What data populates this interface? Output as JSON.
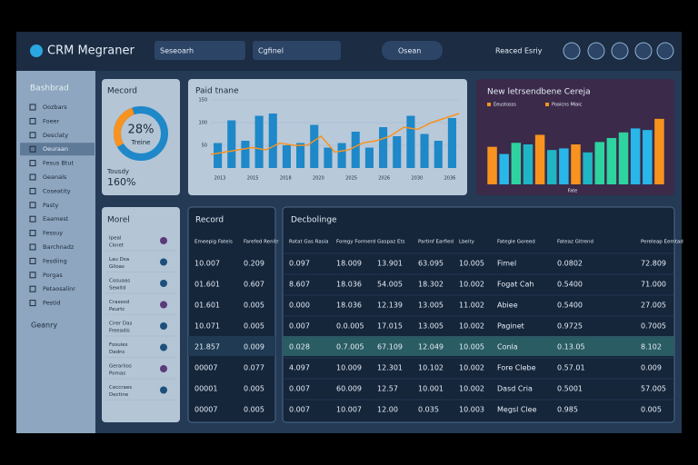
{
  "header": {
    "logo": "CRM Megraner",
    "search": "Seseoarh",
    "filter": "Cgfinel",
    "dropdown": "Osean",
    "link": "Reaced Esriy"
  },
  "sidebar": {
    "title": "Bashbrad",
    "items": [
      "Oozbars",
      "Foeer",
      "Desclaty",
      "Oeuraan",
      "Fesus Btut",
      "Geanals",
      "Coseatity",
      "Pasty",
      "Eaamest",
      "Fessuy",
      "Barchnadz",
      "Fesdiing",
      "Porgas",
      "Petaosalinr",
      "Pestid"
    ],
    "footer": "Geanry"
  },
  "donut_card": {
    "title": "Mecord",
    "value": 28,
    "value_label": "28%",
    "caption": "Treine",
    "footer_label": "Tousdy",
    "footer_value": "160%"
  },
  "trend_card": {
    "title": "Paid tnane",
    "ylim": [
      0,
      150
    ],
    "yticks": [
      50,
      100,
      150
    ],
    "bars": [
      55,
      105,
      60,
      115,
      120,
      50,
      55,
      95,
      45,
      55,
      80,
      45,
      90,
      70,
      115,
      75,
      60,
      110
    ],
    "line": [
      30,
      35,
      40,
      45,
      40,
      55,
      50,
      50,
      70,
      35,
      40,
      55,
      60,
      70,
      90,
      85,
      100,
      110,
      120
    ],
    "x_labels": [
      "2013",
      "2015",
      "2018",
      "2020",
      "2025",
      "2026",
      "2030",
      "2036"
    ]
  },
  "mix_card": {
    "title": "New letrsendbene Cereja",
    "ylim": [
      0,
      100
    ],
    "legend": [
      {
        "name": "Eeustosss",
        "color": "#f7931e"
      },
      {
        "name": "Poaicns Mlaic",
        "color": "#f7931e"
      }
    ],
    "values": [
      47,
      38,
      52,
      50,
      62,
      43,
      45,
      50,
      40,
      53,
      58,
      65,
      70,
      68,
      82
    ],
    "colors": [
      "#f7931e",
      "#29b6e8",
      "#2ed3a0",
      "#1fb5c4",
      "#f7931e",
      "#1fb5c4",
      "#29b6e8",
      "#f7931e",
      "#1fb5c4",
      "#2ed3a0",
      "#2ed3a0",
      "#2ed3a0",
      "#29b6e8",
      "#29b6e8",
      "#f7931e"
    ],
    "x_label": "Fate"
  },
  "list_card": {
    "title": "Morel",
    "items": [
      [
        "Ipeal",
        "Cknet"
      ],
      [
        "Lau Dsa",
        "Giloas"
      ],
      [
        "Cosuaas",
        "Sewitd"
      ],
      [
        "Crasesd",
        "Peurtc"
      ],
      [
        "Cirer Das",
        "Freeadis"
      ],
      [
        "Fosuies",
        "Dadnc"
      ],
      [
        "Gerariios",
        "Pomas"
      ],
      [
        "Ceccraes",
        "Dectine"
      ]
    ]
  },
  "record_table": {
    "title": "Record",
    "headers": [
      "Emeepig Fateis",
      "Farefed Renitr"
    ],
    "rows": [
      [
        "10.007",
        "0.209"
      ],
      [
        "01.601",
        "0.607"
      ],
      [
        "01.601",
        "0.005"
      ],
      [
        "10.071",
        "0.005"
      ],
      [
        "21.857",
        "0.009"
      ],
      [
        "00007",
        "0.077"
      ],
      [
        "00001",
        "0.005"
      ],
      [
        "00007",
        "0.005"
      ]
    ]
  },
  "main_table": {
    "title": "Decbolinge",
    "headers": [
      "Rotat Gas Rasia",
      "Foregy Formerd",
      "Gaspaz Ets",
      "Partinf Earfied",
      "Lbeity",
      "Fategle Goreed",
      "Fateaz Gitrend",
      "Pereleap Eemtad"
    ],
    "rows": [
      [
        "0.097",
        "18.009",
        "13.901",
        "63.095",
        "10.005",
        "Fimel",
        "0.0802",
        "72.809"
      ],
      [
        "8.607",
        "18.036",
        "54.005",
        "18.302",
        "10.002",
        "Fogat Cah",
        "0.5400",
        "71.000"
      ],
      [
        "0.000",
        "18.036",
        "12.139",
        "13.005",
        "11.002",
        "Abiee",
        "0.5400",
        "27.005"
      ],
      [
        "0.007",
        "0.0.005",
        "17.015",
        "13.005",
        "10.002",
        "Paginet",
        "0.9725",
        "0.7005"
      ],
      [
        "0.028",
        "0.7.005",
        "67.109",
        "12.049",
        "10.005",
        "Conla",
        "0.13.05",
        "8.102"
      ],
      [
        "4.097",
        "10.009",
        "12.301",
        "10.102",
        "10.002",
        "Fore Clebe",
        "0.57.01",
        "0.009"
      ],
      [
        "0.007",
        "60.009",
        "12.57",
        "10.001",
        "10.002",
        "Dasd Cria",
        "0.5001",
        "57.005"
      ],
      [
        "0.007",
        "10.007",
        "12.00",
        "0.035",
        "10.003",
        "Megsl Clee",
        "0.985",
        "0.005"
      ]
    ]
  }
}
